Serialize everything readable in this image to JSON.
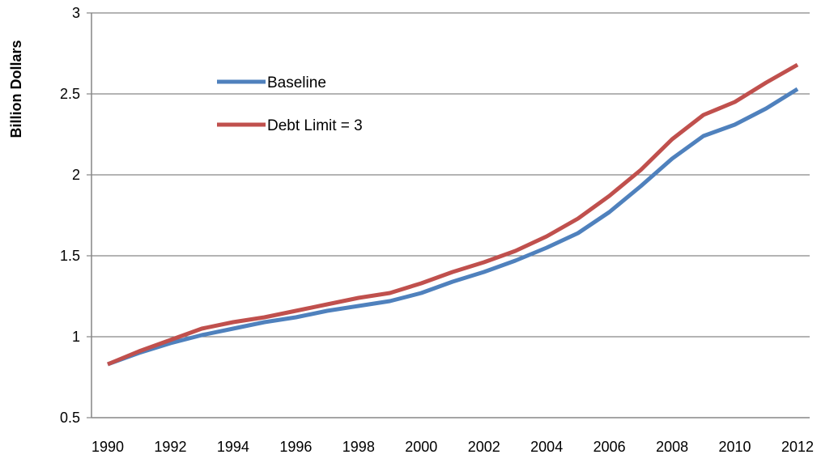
{
  "chart_data": {
    "type": "line",
    "title": "",
    "xlabel": "",
    "ylabel": "Billion Dollars",
    "xlim": [
      1990,
      2012
    ],
    "ylim": [
      0.5,
      3
    ],
    "grid": true,
    "legend_position": "upper-left inside plot",
    "x_ticks": [
      "1990",
      "1992",
      "1994",
      "1996",
      "1998",
      "2000",
      "2002",
      "2004",
      "2006",
      "2008",
      "2010",
      "2012"
    ],
    "y_ticks": [
      "0.5",
      "1",
      "1.5",
      "2",
      "2.5",
      "3"
    ],
    "x": [
      1990,
      1991,
      1992,
      1993,
      1994,
      1995,
      1996,
      1997,
      1998,
      1999,
      2000,
      2001,
      2002,
      2003,
      2004,
      2005,
      2006,
      2007,
      2008,
      2009,
      2010,
      2011,
      2012
    ],
    "series": [
      {
        "name": "Baseline",
        "color": "#4f81bd",
        "values": [
          0.83,
          0.9,
          0.96,
          1.01,
          1.05,
          1.09,
          1.12,
          1.16,
          1.19,
          1.22,
          1.27,
          1.34,
          1.4,
          1.47,
          1.55,
          1.64,
          1.77,
          1.93,
          2.1,
          2.24,
          2.31,
          2.41,
          2.53
        ]
      },
      {
        "name": "Debt Limit = 3",
        "color": "#c0504d",
        "values": [
          0.83,
          0.91,
          0.98,
          1.05,
          1.09,
          1.12,
          1.16,
          1.2,
          1.24,
          1.27,
          1.33,
          1.4,
          1.46,
          1.53,
          1.62,
          1.73,
          1.87,
          2.03,
          2.22,
          2.37,
          2.45,
          2.57,
          2.68
        ]
      }
    ]
  }
}
